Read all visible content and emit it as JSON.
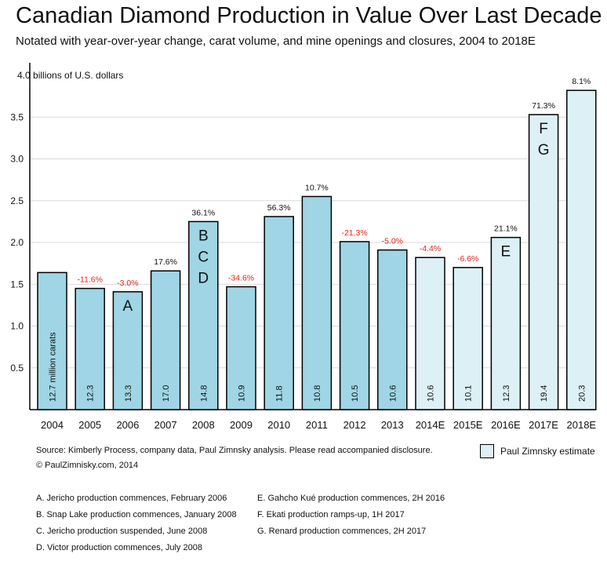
{
  "title": "Canadian Diamond Production in Value Over Last Decade",
  "subtitle": "Notated with year-over-year change, carat volume, and mine openings and closures, 2004 to 2018E",
  "source": "Source: Kimberly Process, company data, Paul Zimnsky analysis.  Please read accompanied disclosure.",
  "copyright": "© PaulZimnisky.com, 2014",
  "legend": {
    "estimate_label": "Paul Zimnsky estimate"
  },
  "colors": {
    "actual": "#9fd5e5",
    "estimate": "#dcf0f6",
    "positive": "#111111",
    "negative": "#e2231a",
    "grid": "#d9d9d9"
  },
  "notes_left": [
    "A. Jericho production commences, February 2006",
    "B. Snap Lake production commences, January 2008",
    "C. Jericho production suspended, June 2008",
    "D. Victor production commences, July 2008"
  ],
  "notes_right": [
    "E. Gahcho Kué production commences, 2H 2016",
    "F. Ekati production ramps-up, 1H 2017",
    "G. Renard production commences, 2H 2017"
  ],
  "chart_data": {
    "type": "bar",
    "ylabel": "billions of U.S. dollars",
    "ylim": [
      0,
      4.0
    ],
    "yticks": [
      "0.5",
      "1.0",
      "1.5",
      "2.0",
      "2.5",
      "3.0",
      "3.5",
      "4.0"
    ],
    "grid": true,
    "legend_placement": "bottom-right",
    "categories": [
      "2004",
      "2005",
      "2006",
      "2007",
      "2008",
      "2009",
      "2010",
      "2011",
      "2012",
      "2013",
      "2014E",
      "2015E",
      "2016E",
      "2017E",
      "2018E"
    ],
    "values": [
      1.64,
      1.45,
      1.41,
      1.66,
      2.25,
      1.47,
      2.31,
      2.55,
      2.01,
      1.91,
      1.82,
      1.7,
      2.06,
      3.53,
      3.82
    ],
    "yoy_change": [
      "",
      "-11.6%",
      "-3.0%",
      "17.6%",
      "36.1%",
      "-34.6%",
      "56.3%",
      "10.7%",
      "-21.3%",
      "-5.0%",
      "-4.4%",
      "-6.6%",
      "21.1%",
      "71.3%",
      "8.1%"
    ],
    "carats": [
      "12.7 million carats",
      "12.3",
      "13.3",
      "17.0",
      "14.8",
      "10.9",
      "11.8",
      "10.8",
      "10.5",
      "10.6",
      "10.6",
      "10.1",
      "12.3",
      "19.4",
      "20.3"
    ],
    "events": [
      "",
      "",
      "A",
      "",
      "B C D",
      "",
      "",
      "",
      "",
      "",
      "",
      "",
      "E",
      "F G",
      ""
    ],
    "estimate": [
      false,
      false,
      false,
      false,
      false,
      false,
      false,
      false,
      false,
      false,
      true,
      true,
      true,
      true,
      true
    ]
  }
}
